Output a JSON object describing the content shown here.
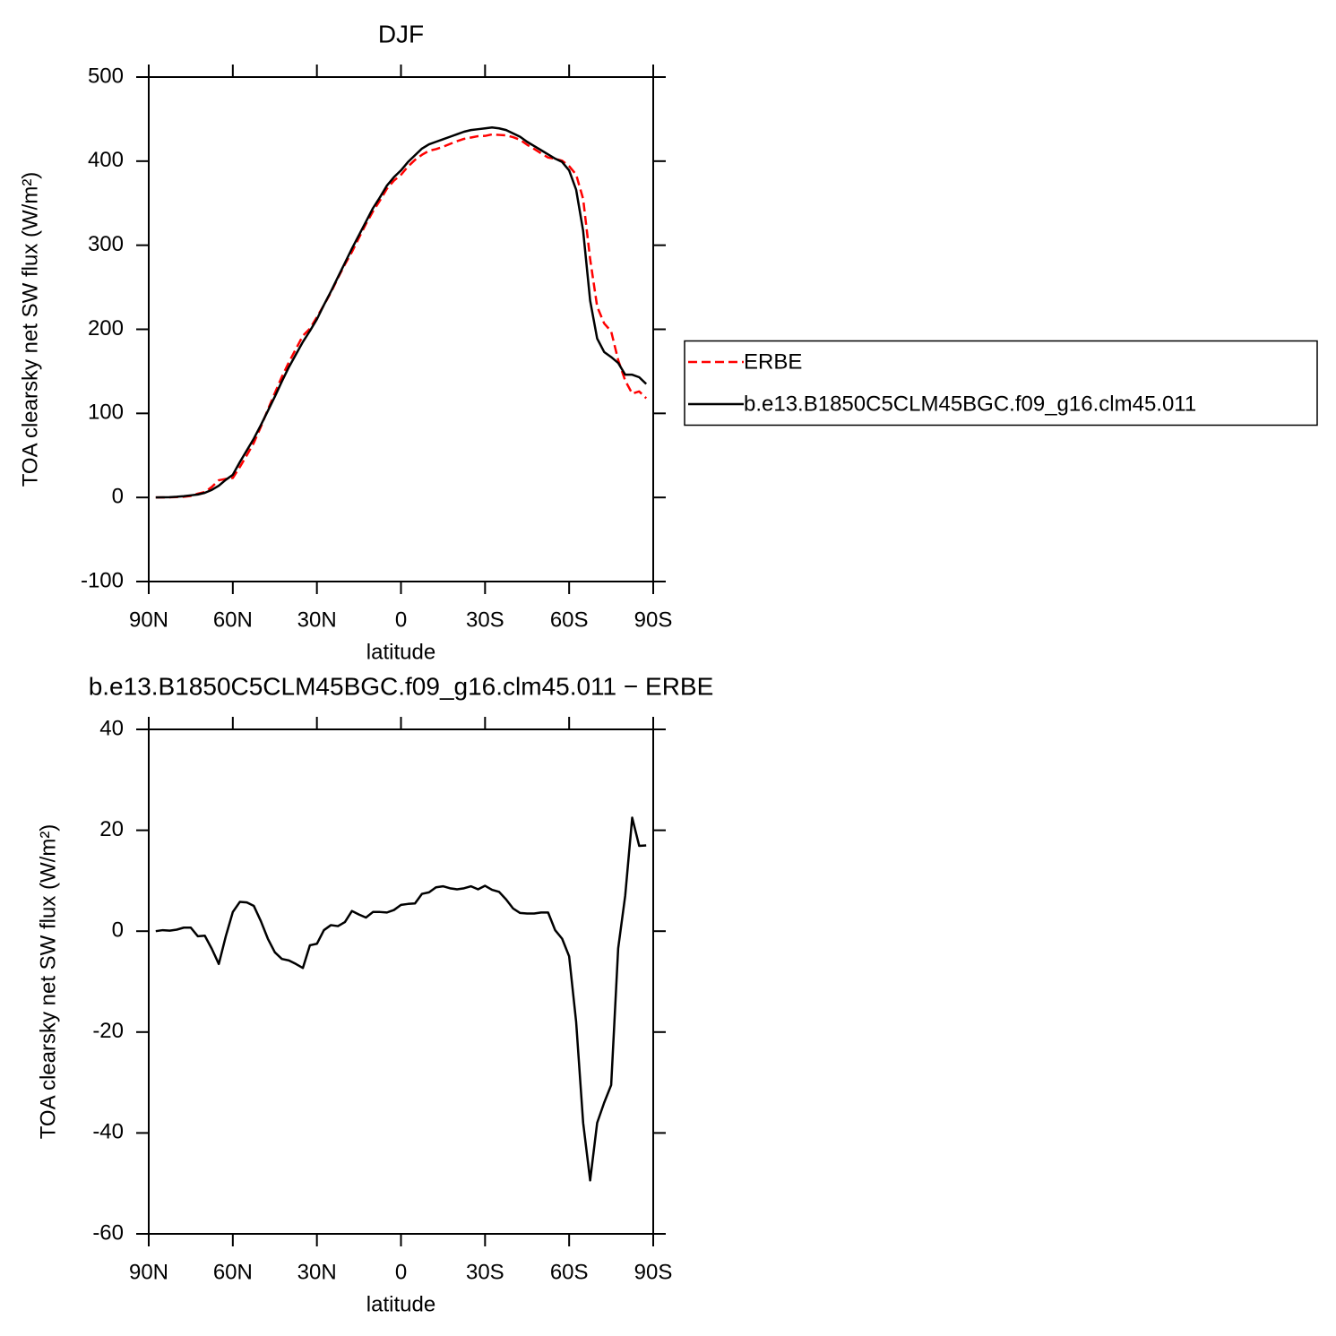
{
  "chart_data": [
    {
      "type": "line",
      "title": "DJF",
      "xlabel": "latitude",
      "ylabel": "TOA clearsky net SW flux (W/m²)",
      "x": [
        87.5,
        85,
        82.5,
        80,
        77.5,
        75,
        72.5,
        70,
        67.5,
        65,
        62.5,
        60,
        57.5,
        55,
        52.5,
        50,
        47.5,
        45,
        42.5,
        40,
        37.5,
        35,
        32.5,
        30,
        27.5,
        25,
        22.5,
        20,
        17.5,
        15,
        12.5,
        10,
        7.5,
        5,
        2.5,
        0,
        -2.5,
        -5,
        -7.5,
        -10,
        -12.5,
        -15,
        -17.5,
        -20,
        -22.5,
        -25,
        -27.5,
        -30,
        -32.5,
        -35,
        -37.5,
        -40,
        -42.5,
        -45,
        -47.5,
        -50,
        -52.5,
        -55,
        -57.5,
        -60,
        -62.5,
        -65,
        -67.5,
        -70,
        -72.5,
        -75,
        -77.5,
        -80,
        -82.5,
        -85,
        -87.5
      ],
      "xlim": [
        90,
        -90
      ],
      "xticks": [
        {
          "value": 90,
          "label": "90N"
        },
        {
          "value": 60,
          "label": "60N"
        },
        {
          "value": 30,
          "label": "30N"
        },
        0,
        {
          "value": -30,
          "label": "30S"
        },
        {
          "value": -60,
          "label": "60S"
        },
        {
          "value": -90,
          "label": "90S"
        }
      ],
      "ylim": [
        -100,
        500
      ],
      "yticks": [
        -100,
        0,
        100,
        200,
        300,
        400,
        500
      ],
      "legend": "right",
      "series": [
        {
          "name": "ERBE",
          "color": "#ff0000",
          "linestyle": "dashed",
          "values": [
            0,
            0,
            0.2,
            0.5,
            0.8,
            1.8,
            4.5,
            6.4,
            12.5,
            20.5,
            22,
            23.2,
            36.2,
            50.3,
            65,
            84,
            104.5,
            124.2,
            143.5,
            160.8,
            176.5,
            192.3,
            200.8,
            214.5,
            228.8,
            243.8,
            261,
            277.2,
            292,
            308.7,
            325.3,
            340.2,
            353.2,
            367.3,
            376.8,
            383.8,
            393.6,
            401.5,
            407.6,
            412.3,
            414.3,
            417.1,
            420.5,
            423.7,
            426.5,
            428.1,
            429.7,
            430,
            431.8,
            431.2,
            430.7,
            428.5,
            425.4,
            419.5,
            414.5,
            409.3,
            404.3,
            402.8,
            400.5,
            394,
            384,
            355,
            283.4,
            227,
            207,
            197.5,
            163.4,
            139,
            123.5,
            126.1,
            118
          ]
        },
        {
          "name": "b.e13.B1850C5CLM45BGC.f09_g16.clm45.011",
          "color": "#000000",
          "linestyle": "solid",
          "values": [
            0,
            0.2,
            0.3,
            0.8,
            1.5,
            2.5,
            3.5,
            5.5,
            9,
            14,
            21,
            27,
            42,
            56,
            70,
            86,
            103,
            120,
            138,
            155,
            170,
            185,
            198,
            212,
            229,
            245,
            262,
            279,
            296,
            312,
            328,
            344,
            357,
            371,
            381,
            389,
            399,
            407,
            415,
            420,
            423,
            426,
            429,
            432,
            435,
            437,
            438,
            439,
            440,
            439,
            437,
            433,
            429,
            423,
            418,
            413,
            408,
            403,
            399,
            389,
            366,
            317,
            234,
            189,
            173,
            167,
            160,
            146,
            146,
            143,
            135
          ]
        }
      ]
    },
    {
      "type": "line",
      "title": "b.e13.B1850C5CLM45BGC.f09_g16.clm45.011 − ERBE",
      "xlabel": "latitude",
      "ylabel": "TOA clearsky net SW flux (W/m²)",
      "x": [
        87.5,
        85,
        82.5,
        80,
        77.5,
        75,
        72.5,
        70,
        67.5,
        65,
        62.5,
        60,
        57.5,
        55,
        52.5,
        50,
        47.5,
        45,
        42.5,
        40,
        37.5,
        35,
        32.5,
        30,
        27.5,
        25,
        22.5,
        20,
        17.5,
        15,
        12.5,
        10,
        7.5,
        5,
        2.5,
        0,
        -2.5,
        -5,
        -7.5,
        -10,
        -12.5,
        -15,
        -17.5,
        -20,
        -22.5,
        -25,
        -27.5,
        -30,
        -32.5,
        -35,
        -37.5,
        -40,
        -42.5,
        -45,
        -47.5,
        -50,
        -52.5,
        -55,
        -57.5,
        -60,
        -62.5,
        -65,
        -67.5,
        -70,
        -72.5,
        -75,
        -77.5,
        -80,
        -82.5,
        -85,
        -87.5
      ],
      "xlim": [
        90,
        -90
      ],
      "xticks": [
        {
          "value": 90,
          "label": "90N"
        },
        {
          "value": 60,
          "label": "60N"
        },
        {
          "value": 30,
          "label": "30N"
        },
        0,
        {
          "value": -30,
          "label": "30S"
        },
        {
          "value": -60,
          "label": "60S"
        },
        {
          "value": -90,
          "label": "90S"
        }
      ],
      "ylim": [
        -60,
        40
      ],
      "yticks": [
        -60,
        -40,
        -20,
        0,
        20,
        40
      ],
      "series": [
        {
          "color": "#000000",
          "linestyle": "solid",
          "values": [
            0,
            0.2,
            0.1,
            0.3,
            0.7,
            0.7,
            -1,
            -0.9,
            -3.5,
            -6.5,
            -1,
            3.8,
            5.8,
            5.7,
            5,
            2,
            -1.5,
            -4.2,
            -5.5,
            -5.8,
            -6.5,
            -7.3,
            -2.8,
            -2.5,
            0.2,
            1.2,
            1,
            1.8,
            4,
            3.3,
            2.7,
            3.8,
            3.8,
            3.7,
            4.2,
            5.2,
            5.4,
            5.5,
            7.4,
            7.7,
            8.7,
            8.9,
            8.5,
            8.3,
            8.5,
            8.9,
            8.3,
            9,
            8.2,
            7.8,
            6.3,
            4.5,
            3.6,
            3.5,
            3.5,
            3.7,
            3.7,
            0.2,
            -1.5,
            -5,
            -18,
            -38,
            -49.4,
            -38,
            -34,
            -30.5,
            -3.4,
            7,
            22.5,
            16.9,
            17
          ]
        }
      ]
    }
  ]
}
